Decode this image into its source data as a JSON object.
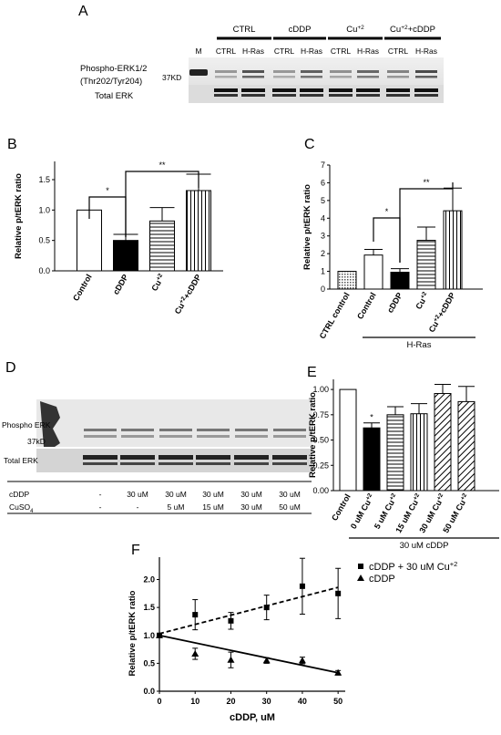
{
  "panels": {
    "A": "A",
    "B": "B",
    "C": "C",
    "D": "D",
    "E": "E",
    "F": "F"
  },
  "panel_a": {
    "groups": [
      "CTRL",
      "cDDP",
      "Cu+2",
      "Cu+2+cDDP"
    ],
    "lanes": [
      "M",
      "CTRL",
      "H-Ras",
      "CTRL",
      "H-Ras",
      "CTRL",
      "H-Ras",
      "CTRL",
      "H-Ras"
    ],
    "row_phospho": "Phospho-ERK1/2",
    "row_phospho_site": "(Thr202/Tyr204)",
    "row_total": "Total ERK",
    "marker": "37KD"
  },
  "panel_d": {
    "row_phospho": "Phospho ERK",
    "marker": "37kD",
    "row_total": "Total ERK",
    "table_rows": [
      {
        "label": "cDDP",
        "values": [
          "-",
          "30 uM",
          "30 uM",
          "30 uM",
          "30 uM",
          "30 uM"
        ]
      },
      {
        "label": "CuSO4",
        "values": [
          "-",
          "-",
          "5 uM",
          "15 uM",
          "30 uM",
          "50 uM"
        ]
      }
    ]
  },
  "chart_data": [
    {
      "panel": "B",
      "type": "bar",
      "ylabel": "Relative p/tERK ratio",
      "ylim": [
        0,
        1.8
      ],
      "yticks": [
        "0.0",
        "0.5",
        "1.0",
        "1.5"
      ],
      "categories": [
        "Control",
        "cDDP",
        "Cu+2",
        "Cu+2+cDDP"
      ],
      "values": [
        1.0,
        0.5,
        0.82,
        1.32
      ],
      "errors": [
        0,
        0.1,
        0.22,
        0.27
      ],
      "fills": [
        "white",
        "black",
        "hlines",
        "vlines"
      ],
      "annotations": [
        {
          "from": 0,
          "to": 1,
          "label": "*"
        },
        {
          "from": 1,
          "to": 3,
          "label": "**"
        }
      ]
    },
    {
      "panel": "C",
      "type": "bar",
      "ylabel": "Relative p/tERK ratio",
      "ylim": [
        0,
        7
      ],
      "yticks": [
        "0",
        "1",
        "2",
        "3",
        "4",
        "5",
        "6",
        "7"
      ],
      "categories": [
        "CTRL control",
        "Control",
        "cDDP",
        "Cu+2",
        "Cu+2+cDDP"
      ],
      "values": [
        1.0,
        1.92,
        0.95,
        2.75,
        4.42
      ],
      "errors": [
        0,
        0.32,
        0.2,
        0.75,
        1.28
      ],
      "fills": [
        "dots",
        "white",
        "black",
        "hlines",
        "vlines"
      ],
      "group_label": "H-Ras",
      "annotations": [
        {
          "from": 1,
          "to": 2,
          "label": "*"
        },
        {
          "from": 2,
          "to": 4,
          "label": "**"
        }
      ]
    },
    {
      "panel": "E",
      "type": "bar",
      "ylabel": "Relative p/tERK ratio",
      "ylim": [
        0,
        1.1
      ],
      "yticks": [
        "0.00",
        "0.25",
        "0.50",
        "0.75",
        "1.00"
      ],
      "categories": [
        "Control",
        "0 uM Cu+2",
        "5 uM Cu+2",
        "15 uM Cu+2",
        "30 uM Cu+2",
        "50 uM Cu+2"
      ],
      "values": [
        1.0,
        0.62,
        0.75,
        0.76,
        0.96,
        0.88
      ],
      "errors": [
        0,
        0.05,
        0.08,
        0.1,
        0.09,
        0.15
      ],
      "fills": [
        "white",
        "black",
        "hlines",
        "vlines",
        "diag",
        "diag"
      ],
      "group_label": "30 uM cDDP",
      "annotations": [
        {
          "bar": 1,
          "label": "*"
        }
      ]
    },
    {
      "panel": "F",
      "type": "scatter",
      "ylabel": "Relative p/tERK ratio",
      "xlabel": "cDDP, uM",
      "xlim": [
        0,
        52
      ],
      "ylim": [
        0,
        2.4
      ],
      "xticks": [
        0,
        10,
        20,
        30,
        40,
        50
      ],
      "yticks": [
        "0.0",
        "0.5",
        "1.0",
        "1.5",
        "2.0"
      ],
      "series": [
        {
          "name": "cDDP + 30 uM Cu+2",
          "marker": "square",
          "line": "dashed",
          "x": [
            0,
            10,
            20,
            30,
            40,
            50
          ],
          "y": [
            1.0,
            1.37,
            1.26,
            1.5,
            1.88,
            1.75
          ],
          "err": [
            0,
            0.27,
            0.15,
            0.22,
            0.5,
            0.45
          ],
          "fit": [
            1.03,
            1.86
          ]
        },
        {
          "name": "cDDP",
          "marker": "triangle",
          "line": "solid",
          "x": [
            0,
            10,
            20,
            30,
            40,
            50
          ],
          "y": [
            1.0,
            0.67,
            0.56,
            0.55,
            0.55,
            0.33
          ],
          "err": [
            0,
            0.1,
            0.14,
            0.05,
            0.06,
            0.04
          ],
          "fit": [
            1.0,
            0.33
          ]
        }
      ]
    }
  ]
}
